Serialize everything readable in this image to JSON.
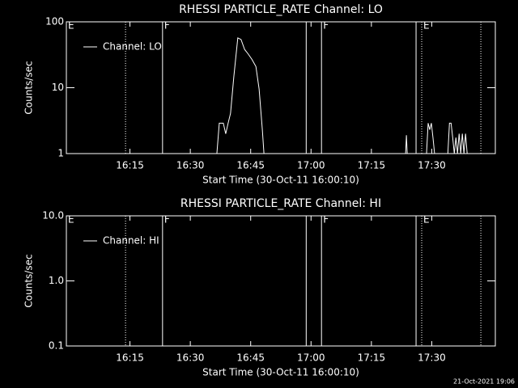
{
  "chart_data": [
    {
      "type": "line",
      "title": "RHESSI PARTICLE_RATE Channel: LO",
      "xlabel": "Start Time (30-Oct-11 16:00:10)",
      "ylabel": "Counts/sec",
      "log_y": true,
      "legend": "top-left",
      "color": "#ffffff",
      "xlim": [
        -0.8,
        105.8
      ],
      "ylim": [
        1,
        100
      ],
      "xticks": [
        {
          "value": 15,
          "label": "16:15"
        },
        {
          "value": 30,
          "label": "16:30"
        },
        {
          "value": 45,
          "label": "16:45"
        },
        {
          "value": 60,
          "label": "17:00"
        },
        {
          "value": 75,
          "label": "17:15"
        },
        {
          "value": 90,
          "label": "17:30"
        }
      ],
      "yticks": [
        1,
        10,
        100
      ],
      "flags": [
        {
          "x": -0.8,
          "style": "solid",
          "label": "E"
        },
        {
          "x": 13.9,
          "style": "dotted"
        },
        {
          "x": 23.1,
          "style": "solid",
          "label": "F"
        },
        {
          "x": 58.8,
          "style": "solid"
        },
        {
          "x": 62.6,
          "style": "solid",
          "label": "F"
        },
        {
          "x": 86.1,
          "style": "solid"
        },
        {
          "x": 87.5,
          "style": "dotted",
          "label": "E"
        },
        {
          "x": 102.2,
          "style": "dotted"
        }
      ],
      "x": [
        36.6,
        37.2,
        38.2,
        38.8,
        39.4,
        40.0,
        40.8,
        41.8,
        42.6,
        43.5,
        44.3,
        45.3,
        46.3,
        47.1,
        47.9,
        48.3,
        null,
        83.5,
        83.7,
        83.9,
        null,
        88.7,
        89.1,
        89.5,
        89.9,
        90.3,
        90.7,
        null,
        94.0,
        94.4,
        94.8,
        95.2,
        95.6,
        96.0,
        96.4,
        96.8,
        97.2,
        97.6,
        98.0,
        98.4,
        98.8
      ],
      "series": [
        {
          "name": "Channel: LO",
          "color": "#ffffff",
          "values": [
            1,
            2.9,
            2.9,
            2.0,
            2.9,
            4.1,
            14.4,
            57,
            54,
            38,
            33,
            27,
            21,
            9.5,
            2.3,
            1,
            null,
            1,
            1.9,
            1,
            null,
            1,
            2.9,
            2.3,
            2.9,
            1.75,
            1,
            null,
            1,
            2.9,
            2.9,
            1.75,
            1,
            1.75,
            1,
            2.0,
            1,
            2.0,
            1,
            2.0,
            1
          ]
        }
      ]
    },
    {
      "type": "line",
      "title": "RHESSI PARTICLE_RATE Channel: HI",
      "xlabel": "Start Time (30-Oct-11 16:00:10)",
      "ylabel": "Counts/sec",
      "log_y": true,
      "legend": "top-left",
      "color": "#ffffff",
      "xlim": [
        -0.8,
        105.8
      ],
      "ylim": [
        0.1,
        10
      ],
      "xticks": [
        {
          "value": 15,
          "label": "16:15"
        },
        {
          "value": 30,
          "label": "16:30"
        },
        {
          "value": 45,
          "label": "16:45"
        },
        {
          "value": 60,
          "label": "17:00"
        },
        {
          "value": 75,
          "label": "17:15"
        },
        {
          "value": 90,
          "label": "17:30"
        }
      ],
      "yticks": [
        0.1,
        {
          "value": 1,
          "label": "1.0"
        },
        {
          "value": 10,
          "label": "10.0"
        }
      ],
      "flags": [
        {
          "x": -0.8,
          "style": "solid",
          "label": "E"
        },
        {
          "x": 13.9,
          "style": "dotted"
        },
        {
          "x": 23.1,
          "style": "solid",
          "label": "F"
        },
        {
          "x": 58.8,
          "style": "solid"
        },
        {
          "x": 62.6,
          "style": "solid",
          "label": "F"
        },
        {
          "x": 86.1,
          "style": "solid"
        },
        {
          "x": 87.5,
          "style": "dotted",
          "label": "E"
        },
        {
          "x": 102.2,
          "style": "dotted"
        }
      ],
      "x": [],
      "series": [
        {
          "name": "Channel: HI",
          "color": "#ffffff",
          "values": []
        }
      ]
    }
  ],
  "footer": "21-Oct-2021 19:06"
}
